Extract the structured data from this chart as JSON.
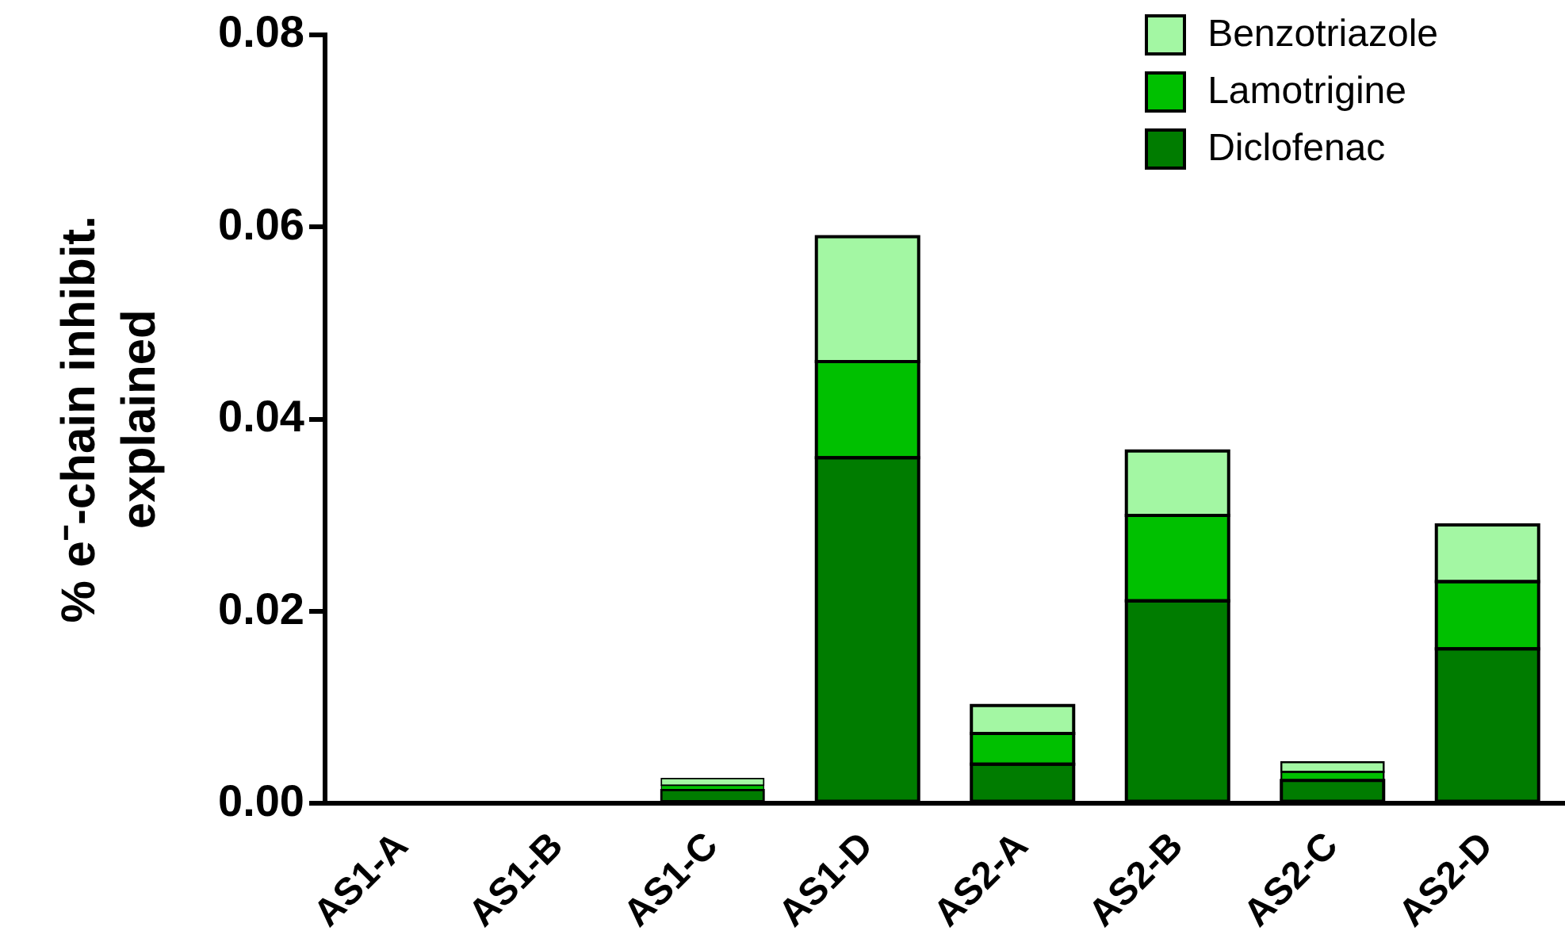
{
  "chart_data": {
    "type": "bar",
    "ylabel": "% e⁻-chain inhibit. explained",
    "categories": [
      "AS1-A",
      "AS1-B",
      "AS1-C",
      "AS1-D",
      "AS2-A",
      "AS2-B",
      "AS2-C",
      "AS2-D"
    ],
    "stacked": true,
    "series": [
      {
        "name": "Diclofenac",
        "color": "#007c00",
        "values": [
          0,
          0,
          0.0014,
          0.036,
          0.0041,
          0.0211,
          0.0024,
          0.0161
        ]
      },
      {
        "name": "Lamotrigine",
        "color": "#00c000",
        "values": [
          0,
          0,
          0.0005,
          0.01,
          0.0032,
          0.0089,
          0.0009,
          0.007
        ]
      },
      {
        "name": "Benzotriazole",
        "color": "#a3f7a3",
        "values": [
          0,
          0,
          0.0007,
          0.013,
          0.0029,
          0.0067,
          0.001,
          0.0059
        ]
      }
    ],
    "ylim": [
      0,
      0.08
    ],
    "yticks": [
      {
        "value": 0,
        "label": "0.00"
      },
      {
        "value": 0.02,
        "label": "0.02"
      },
      {
        "value": 0.04,
        "label": "0.04"
      },
      {
        "value": 0.06,
        "label": "0.06"
      },
      {
        "value": 0.08,
        "label": "0.08"
      }
    ],
    "grid": false,
    "legend": "top right"
  }
}
